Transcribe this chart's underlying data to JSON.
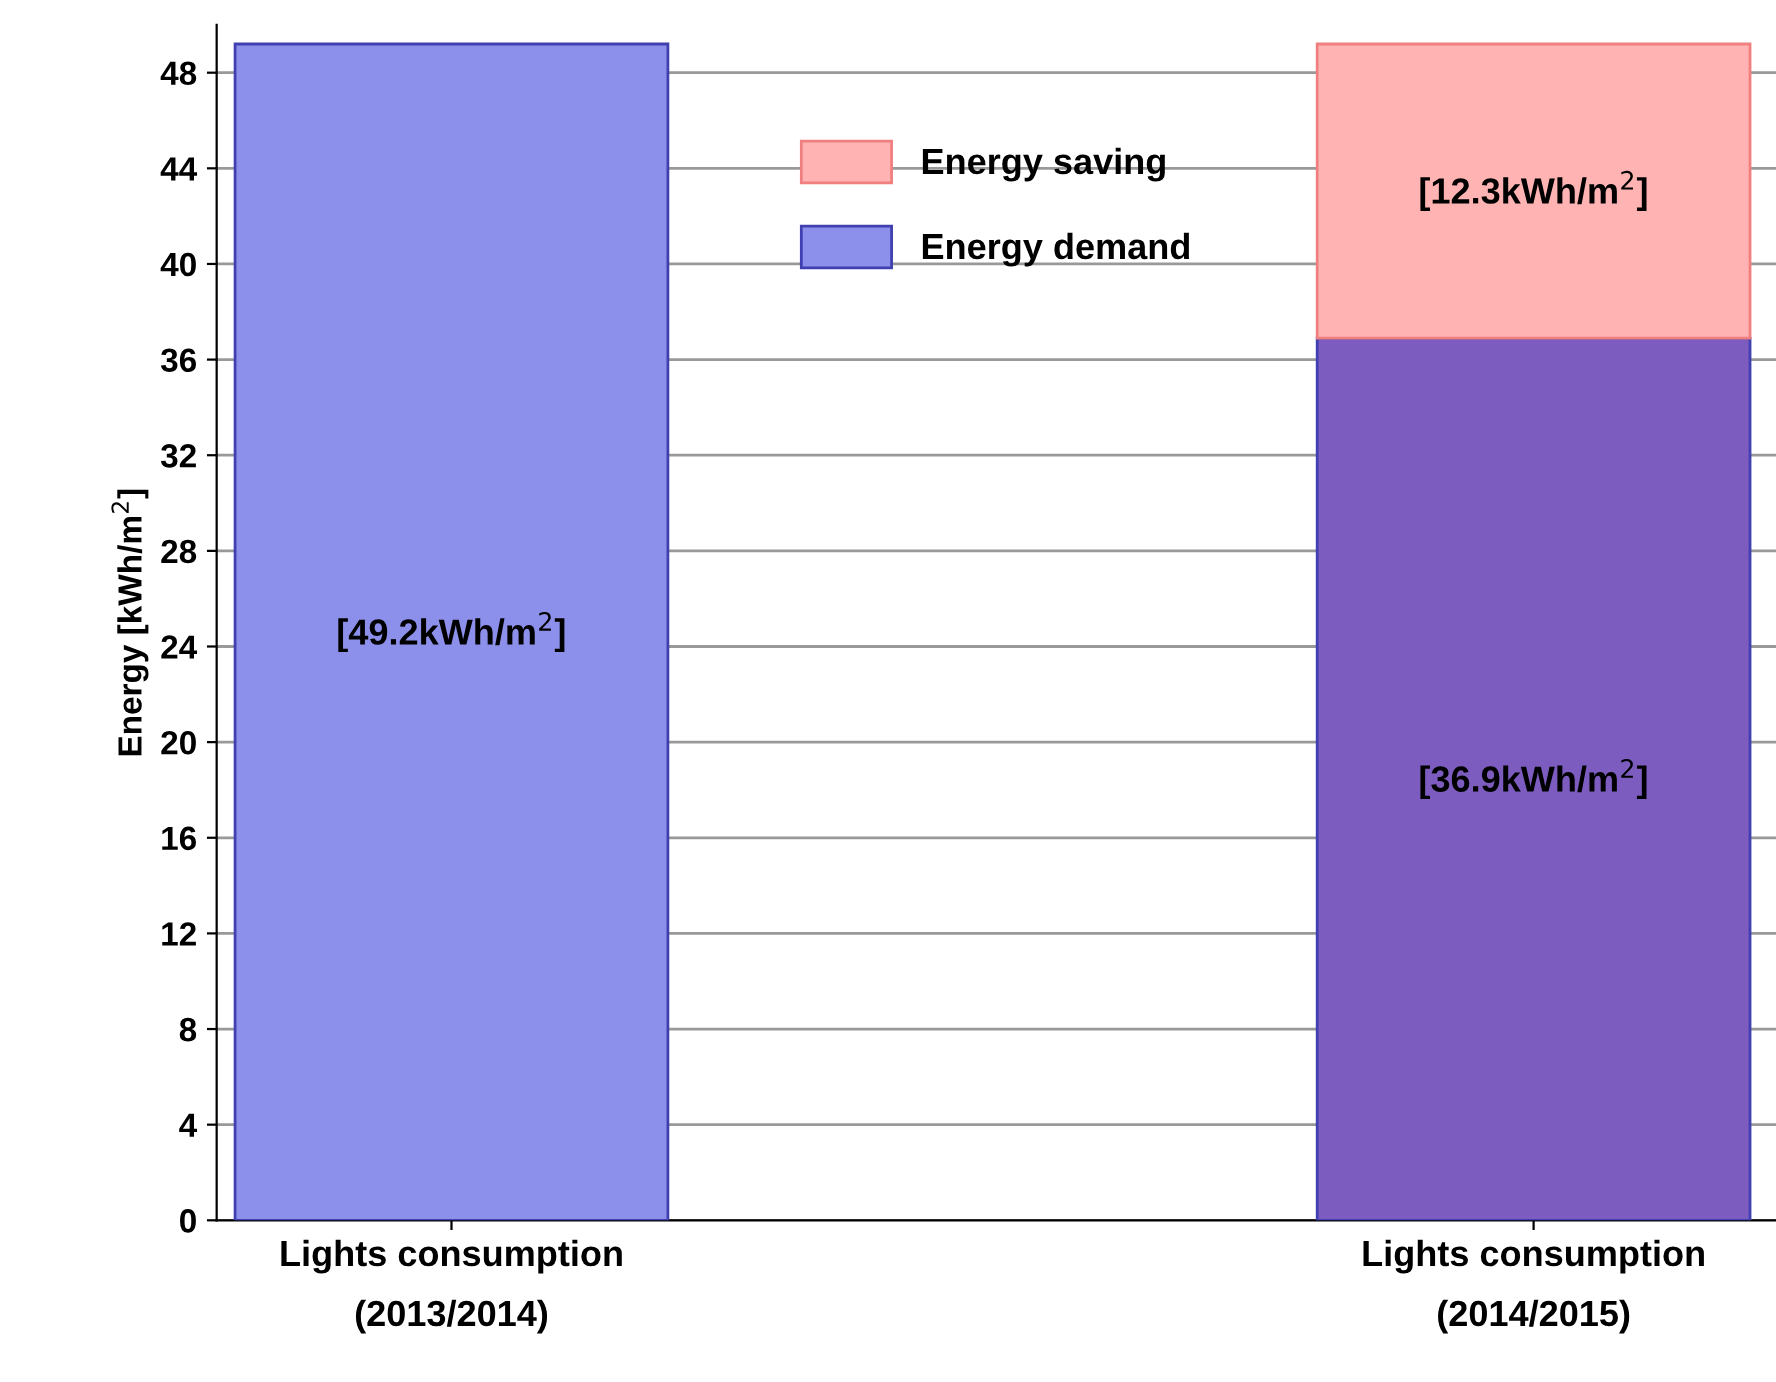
{
  "chart_data": {
    "type": "bar",
    "stacked": true,
    "ylabel": "Energy [kWh/m$^{2}$]",
    "categories": [
      "Lights consumption\n(2013/2014)",
      "Lights consumption\n(2014/2015)"
    ],
    "series": [
      {
        "name": "Energy demand",
        "colors": [
          "#8c90ea",
          "#7d5cc0"
        ],
        "values": [
          49.2,
          36.9
        ],
        "value_labels": [
          "[49.2kWh/m$^{2}$]",
          "[36.9kWh/m$^{2}$]"
        ]
      },
      {
        "name": "Energy saving",
        "color": "#ffb3b3",
        "values": [
          null,
          12.3
        ],
        "value_labels": [
          null,
          "[12.3kWh/m$^{2}$]"
        ]
      }
    ],
    "ylim": [
      0,
      50
    ],
    "yticks": [
      0,
      4,
      8,
      12,
      16,
      20,
      24,
      28,
      32,
      36,
      40,
      44,
      48
    ],
    "grid": "y",
    "legend": "top"
  }
}
